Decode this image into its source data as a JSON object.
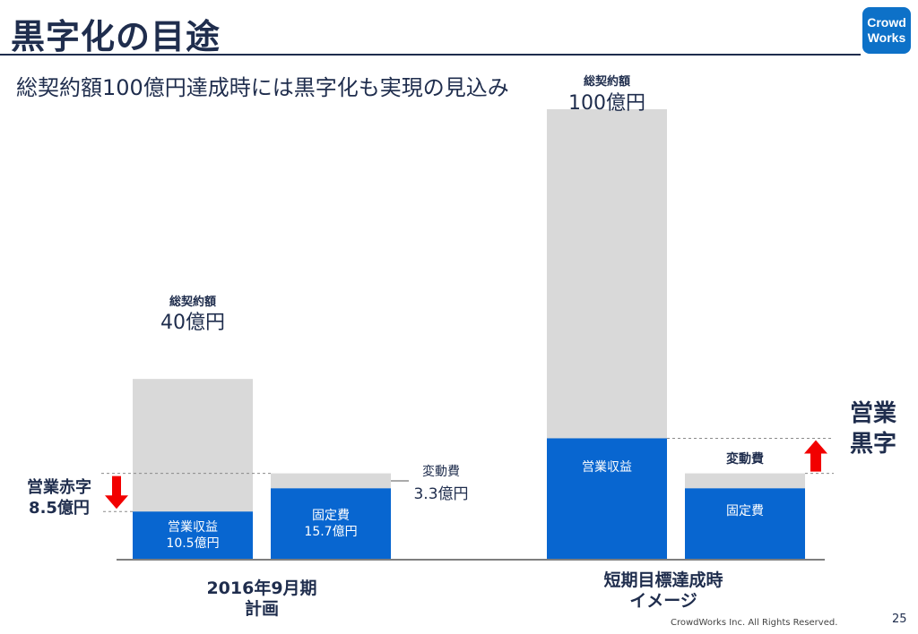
{
  "header": {
    "title": "黒字化の目途",
    "subtitle": "総契約額100億円達成時には黒字化も実現の見込み",
    "logo_line1": "Crowd",
    "logo_line2": "Works"
  },
  "footer": {
    "copyright": "CrowdWorks Inc. All Rights Reserved.",
    "page_number": "25"
  },
  "colors": {
    "navy": "#1f2d4d",
    "blue": "#0866d0",
    "gray": "#d9d9d9",
    "red": "#f20000",
    "logo": "#0d71c8"
  },
  "chart_data": {
    "type": "bar",
    "unit": "億円",
    "groups": [
      {
        "label_line1": "2016年9月期",
        "label_line2": "計画",
        "total": {
          "caption": "総契約額",
          "value": 40,
          "value_label": "40億円"
        },
        "revenue": {
          "name": "営業収益",
          "value": 10.5,
          "value_label": "10.5億円"
        },
        "fixed": {
          "name": "固定費",
          "value": 15.7,
          "value_label": "15.7億円"
        },
        "variable": {
          "name": "変動費",
          "value": 3.3,
          "value_label": "3.3億円"
        },
        "annotation": {
          "line1": "営業赤字",
          "line2": "8.5億円",
          "direction": "down"
        }
      },
      {
        "label_line1": "短期目標達成時",
        "label_line2": "イメージ",
        "total": {
          "caption": "総契約額",
          "value": 100,
          "value_label": "100億円"
        },
        "revenue": {
          "name": "営業収益",
          "value": 26.8
        },
        "fixed": {
          "name": "固定費",
          "value": 15.7
        },
        "variable": {
          "name": "変動費",
          "value": 3.3
        },
        "annotation": {
          "line1": "営業",
          "line2": "黒字",
          "direction": "up"
        }
      }
    ]
  }
}
